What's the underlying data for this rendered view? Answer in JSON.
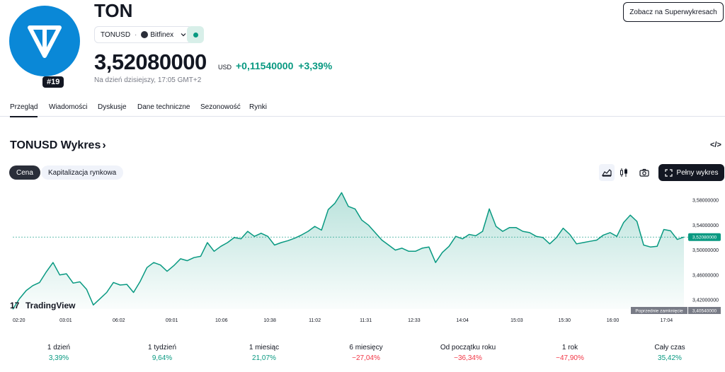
{
  "header": {
    "ticker": "TON",
    "rank": "#19",
    "symbol": "TONUSD",
    "separator": "·",
    "exchange": "Bitfinex",
    "price": "3,52080000",
    "currency": "USD",
    "change_abs": "+0,11540000",
    "change_pct": "+3,39%",
    "as_of": "Na dzień dzisiejszy, 17:05 GMT+2",
    "super_button": "Zobacz na Superwykresach",
    "brand_color": "#0a88d7"
  },
  "tabs": [
    {
      "label": "Przegląd",
      "active": true
    },
    {
      "label": "Wiadomości",
      "active": false
    },
    {
      "label": "Dyskusje",
      "active": false
    },
    {
      "label": "Dane techniczne",
      "active": false
    },
    {
      "label": "Sezonowość",
      "active": false
    },
    {
      "label": "Rynki",
      "active": false
    }
  ],
  "chart_section": {
    "title": "TONUSD Wykres",
    "title_chevron": "›",
    "embed_label": "</>",
    "segments": [
      {
        "label": "Cena",
        "active": true
      },
      {
        "label": "Kapitalizacja rynkowa",
        "active": false
      }
    ],
    "full_chart_button": "Pełny wykres",
    "watermark": "TradingView",
    "prev_close_label": "Poprzednie zamknięcie",
    "prev_close_value": "3,40540000",
    "current_value_label": "3,52080000"
  },
  "chart_data": {
    "type": "area",
    "color": "#089981",
    "y_ticks": [
      "3,58000000",
      "3,54000000",
      "3,50000000",
      "3,46000000",
      "3,42000000"
    ],
    "y_tick_values": [
      3.58,
      3.54,
      3.5,
      3.46,
      3.42
    ],
    "ylim": [
      3.4054,
      3.5925
    ],
    "x_ticks": [
      "02:20",
      "03:01",
      "06:02",
      "09:01",
      "10:06",
      "10:38",
      "11:02",
      "11:31",
      "12:33",
      "14:04",
      "15:03",
      "15:30",
      "16:00",
      "17:04"
    ],
    "x_tick_positions": [
      0,
      7.9,
      15.8,
      23.7,
      31.1,
      38.3,
      45.0,
      52.6,
      59.8,
      67.0,
      75.1,
      82.2,
      89.4,
      97.4
    ],
    "x": [
      0,
      1,
      2,
      3,
      4,
      5,
      6,
      7,
      8,
      9,
      10,
      11,
      12,
      13,
      14,
      15,
      16,
      17,
      18,
      19,
      20,
      21,
      22,
      23,
      24,
      25,
      26,
      27,
      28,
      29,
      30,
      31,
      32,
      33,
      34,
      35,
      36,
      37,
      38,
      39,
      40,
      41,
      42,
      43,
      44,
      45,
      46,
      47,
      48,
      49,
      50,
      51,
      52,
      53,
      54,
      55,
      56,
      57,
      58,
      59,
      60,
      61,
      62,
      63,
      64,
      65,
      66,
      67,
      68,
      69,
      70,
      71,
      72,
      73,
      74,
      75,
      76,
      77,
      78,
      79,
      80,
      81,
      82,
      83,
      84,
      85,
      86,
      87,
      88,
      89,
      90,
      91,
      92,
      93,
      94,
      95,
      96,
      97,
      98,
      99,
      100
    ],
    "y": [
      3.405,
      3.422,
      3.435,
      3.443,
      3.448,
      3.465,
      3.48,
      3.46,
      3.462,
      3.447,
      3.449,
      3.437,
      3.412,
      3.422,
      3.432,
      3.448,
      3.444,
      3.445,
      3.432,
      3.45,
      3.472,
      3.48,
      3.476,
      3.466,
      3.475,
      3.486,
      3.483,
      3.488,
      3.49,
      3.512,
      3.498,
      3.506,
      3.512,
      3.52,
      3.518,
      3.53,
      3.522,
      3.527,
      3.522,
      3.508,
      3.512,
      3.515,
      3.519,
      3.524,
      3.53,
      3.538,
      3.532,
      3.565,
      3.575,
      3.592,
      3.57,
      3.566,
      3.548,
      3.54,
      3.528,
      3.516,
      3.508,
      3.5,
      3.503,
      3.498,
      3.498,
      3.503,
      3.505,
      3.48,
      3.496,
      3.506,
      3.522,
      3.518,
      3.525,
      3.523,
      3.53,
      3.566,
      3.538,
      3.53,
      3.536,
      3.536,
      3.53,
      3.528,
      3.522,
      3.52,
      3.51,
      3.52,
      3.535,
      3.525,
      3.51,
      3.512,
      3.514,
      3.516,
      3.524,
      3.528,
      3.522,
      3.544,
      3.556,
      3.546,
      3.508,
      3.505,
      3.506,
      3.533,
      3.531,
      3.517,
      3.5208
    ]
  },
  "periods": [
    {
      "label": "1 dzień",
      "value": "3,39%",
      "sign": "pos",
      "active": true
    },
    {
      "label": "1 tydzień",
      "value": "9,64%",
      "sign": "pos",
      "active": false
    },
    {
      "label": "1 miesiąc",
      "value": "21,07%",
      "sign": "pos",
      "active": false
    },
    {
      "label": "6 miesięcy",
      "value": "−27,04%",
      "sign": "neg",
      "active": false
    },
    {
      "label": "Od początku roku",
      "value": "−36,34%",
      "sign": "neg",
      "active": false
    },
    {
      "label": "1 rok",
      "value": "−47,90%",
      "sign": "neg",
      "active": false
    },
    {
      "label": "Cały czas",
      "value": "35,42%",
      "sign": "pos",
      "active": false
    }
  ]
}
